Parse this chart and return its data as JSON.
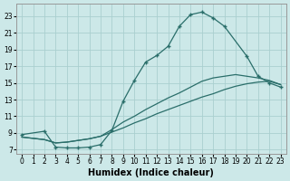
{
  "bg_color": "#cce8e8",
  "line_color": "#2a6e6a",
  "grid_color": "#aacfcf",
  "xlabel": "Humidex (Indice chaleur)",
  "xlim": [
    -0.5,
    23.5
  ],
  "ylim": [
    6.5,
    24.5
  ],
  "xticks": [
    0,
    1,
    2,
    3,
    4,
    5,
    6,
    7,
    8,
    9,
    10,
    11,
    12,
    13,
    14,
    15,
    16,
    17,
    18,
    19,
    20,
    21,
    22,
    23
  ],
  "yticks": [
    7,
    9,
    11,
    13,
    15,
    17,
    19,
    21,
    23
  ],
  "curve1_x": [
    0,
    2,
    3,
    4,
    5,
    6,
    7,
    8,
    9,
    10,
    11,
    12,
    13,
    14,
    15,
    16,
    17,
    18,
    20,
    21,
    22,
    23
  ],
  "curve1_y": [
    8.8,
    9.2,
    7.3,
    7.2,
    7.2,
    7.3,
    7.6,
    9.3,
    12.8,
    15.3,
    17.5,
    18.3,
    19.4,
    21.8,
    23.2,
    23.5,
    22.8,
    21.8,
    18.2,
    15.8,
    15.0,
    14.5
  ],
  "curve1_has_markers": true,
  "curve2_x": [
    0,
    2,
    3,
    4,
    5,
    6,
    7,
    8,
    9,
    10,
    11,
    12,
    13,
    14,
    15,
    16,
    17,
    18,
    19,
    20,
    21,
    22,
    23
  ],
  "curve2_y": [
    8.5,
    8.2,
    7.8,
    7.9,
    8.1,
    8.3,
    8.6,
    9.1,
    9.6,
    10.2,
    10.7,
    11.3,
    11.8,
    12.3,
    12.8,
    13.3,
    13.7,
    14.2,
    14.6,
    14.9,
    15.1,
    15.2,
    14.8
  ],
  "curve2_has_markers": false,
  "curve3_x": [
    0,
    2,
    3,
    4,
    5,
    6,
    7,
    8,
    9,
    10,
    11,
    12,
    13,
    14,
    15,
    16,
    17,
    18,
    19,
    20,
    21,
    22,
    23
  ],
  "curve3_y": [
    8.5,
    8.2,
    7.8,
    7.9,
    8.1,
    8.3,
    8.6,
    9.4,
    10.3,
    11.0,
    11.8,
    12.5,
    13.2,
    13.8,
    14.5,
    15.2,
    15.6,
    15.8,
    16.0,
    15.8,
    15.6,
    15.3,
    14.8
  ],
  "curve3_has_markers": false,
  "tick_fontsize": 5.5,
  "xlabel_fontsize": 7.0
}
